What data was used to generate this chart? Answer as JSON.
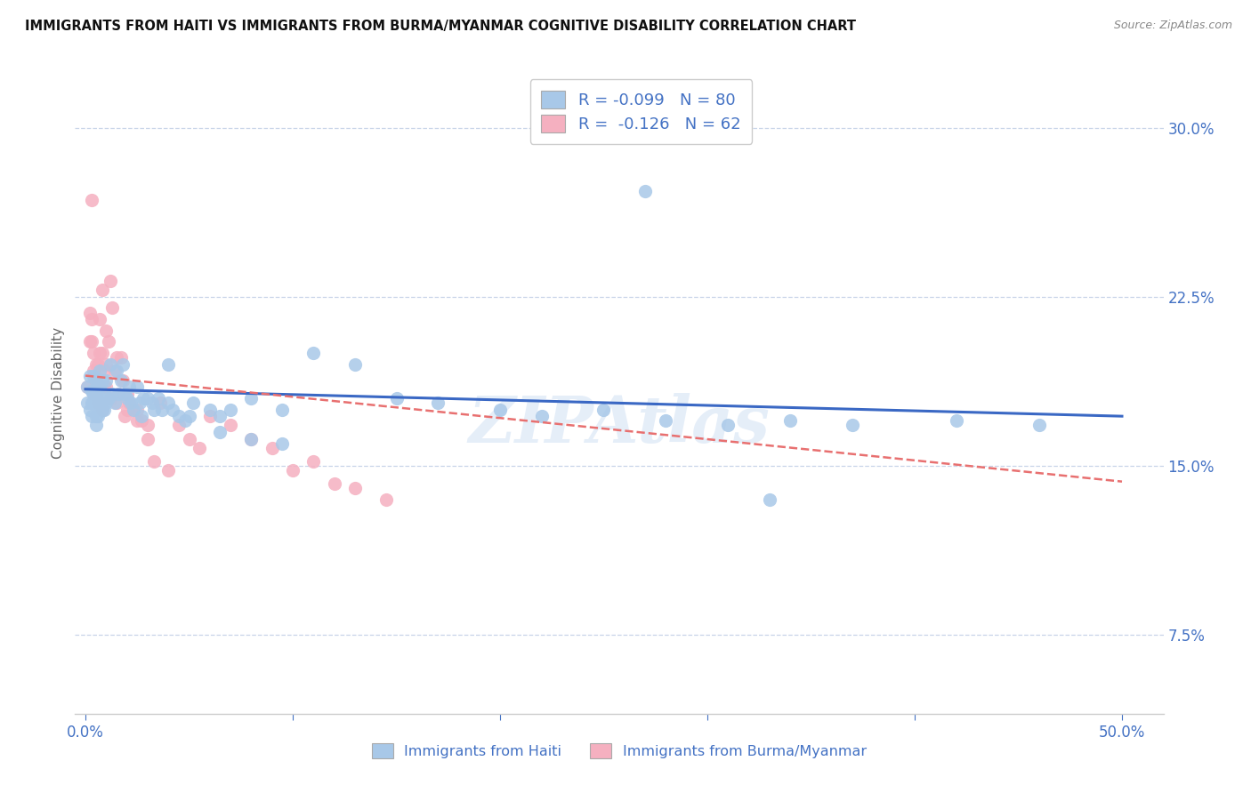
{
  "title": "IMMIGRANTS FROM HAITI VS IMMIGRANTS FROM BURMA/MYANMAR COGNITIVE DISABILITY CORRELATION CHART",
  "source": "Source: ZipAtlas.com",
  "ylabel": "Cognitive Disability",
  "y_ticks_right": [
    0.075,
    0.15,
    0.225,
    0.3
  ],
  "y_tick_labels_right": [
    "7.5%",
    "15.0%",
    "22.5%",
    "30.0%"
  ],
  "xlim": [
    -0.005,
    0.52
  ],
  "ylim": [
    0.04,
    0.325
  ],
  "legend_haiti_label": "R = -0.099   N = 80",
  "legend_burma_label": "R =  -0.126   N = 62",
  "haiti_color": "#a8c8e8",
  "burma_color": "#f5b0c0",
  "haiti_line_color": "#3a68c4",
  "burma_line_color": "#e87070",
  "axis_color": "#4472c4",
  "legend_label_haiti": "Immigrants from Haiti",
  "legend_label_burma": "Immigrants from Burma/Myanmar",
  "haiti_scatter_x": [
    0.001,
    0.001,
    0.002,
    0.002,
    0.003,
    0.003,
    0.003,
    0.004,
    0.004,
    0.004,
    0.005,
    0.005,
    0.005,
    0.005,
    0.005,
    0.006,
    0.006,
    0.006,
    0.007,
    0.007,
    0.007,
    0.008,
    0.008,
    0.008,
    0.009,
    0.009,
    0.01,
    0.01,
    0.011,
    0.012,
    0.013,
    0.014,
    0.015,
    0.016,
    0.017,
    0.018,
    0.019,
    0.02,
    0.021,
    0.022,
    0.023,
    0.025,
    0.026,
    0.027,
    0.028,
    0.03,
    0.032,
    0.033,
    0.035,
    0.037,
    0.04,
    0.042,
    0.045,
    0.048,
    0.052,
    0.06,
    0.065,
    0.07,
    0.08,
    0.095,
    0.11,
    0.13,
    0.15,
    0.17,
    0.2,
    0.22,
    0.25,
    0.28,
    0.31,
    0.34,
    0.37,
    0.04,
    0.05,
    0.065,
    0.08,
    0.095,
    0.42,
    0.46,
    0.27,
    0.33
  ],
  "haiti_scatter_y": [
    0.185,
    0.178,
    0.19,
    0.175,
    0.183,
    0.178,
    0.172,
    0.19,
    0.182,
    0.178,
    0.188,
    0.182,
    0.178,
    0.172,
    0.168,
    0.185,
    0.178,
    0.172,
    0.192,
    0.185,
    0.178,
    0.188,
    0.18,
    0.175,
    0.182,
    0.175,
    0.188,
    0.178,
    0.18,
    0.195,
    0.182,
    0.178,
    0.192,
    0.182,
    0.188,
    0.195,
    0.182,
    0.18,
    0.185,
    0.178,
    0.175,
    0.185,
    0.178,
    0.172,
    0.18,
    0.18,
    0.178,
    0.175,
    0.18,
    0.175,
    0.178,
    0.175,
    0.172,
    0.17,
    0.178,
    0.175,
    0.172,
    0.175,
    0.18,
    0.175,
    0.2,
    0.195,
    0.18,
    0.178,
    0.175,
    0.172,
    0.175,
    0.17,
    0.168,
    0.17,
    0.168,
    0.195,
    0.172,
    0.165,
    0.162,
    0.16,
    0.17,
    0.168,
    0.272,
    0.135
  ],
  "burma_scatter_x": [
    0.001,
    0.002,
    0.002,
    0.003,
    0.003,
    0.004,
    0.004,
    0.005,
    0.005,
    0.005,
    0.006,
    0.006,
    0.007,
    0.007,
    0.008,
    0.008,
    0.009,
    0.009,
    0.01,
    0.01,
    0.011,
    0.012,
    0.013,
    0.014,
    0.015,
    0.016,
    0.017,
    0.018,
    0.019,
    0.02,
    0.021,
    0.023,
    0.025,
    0.027,
    0.03,
    0.033,
    0.036,
    0.04,
    0.045,
    0.05,
    0.055,
    0.06,
    0.07,
    0.08,
    0.09,
    0.1,
    0.11,
    0.12,
    0.13,
    0.145,
    0.003,
    0.004,
    0.005,
    0.006,
    0.007,
    0.008,
    0.01,
    0.012,
    0.015,
    0.02,
    0.025,
    0.03
  ],
  "burma_scatter_y": [
    0.185,
    0.218,
    0.205,
    0.215,
    0.205,
    0.2,
    0.192,
    0.195,
    0.188,
    0.182,
    0.195,
    0.185,
    0.215,
    0.2,
    0.228,
    0.2,
    0.192,
    0.185,
    0.21,
    0.195,
    0.205,
    0.232,
    0.22,
    0.192,
    0.198,
    0.182,
    0.198,
    0.188,
    0.172,
    0.182,
    0.178,
    0.175,
    0.175,
    0.17,
    0.168,
    0.152,
    0.178,
    0.148,
    0.168,
    0.162,
    0.158,
    0.172,
    0.168,
    0.162,
    0.158,
    0.148,
    0.152,
    0.142,
    0.14,
    0.135,
    0.268,
    0.182,
    0.182,
    0.178,
    0.178,
    0.175,
    0.185,
    0.18,
    0.178,
    0.175,
    0.17,
    0.162
  ],
  "haiti_line_x": [
    0.0,
    0.5
  ],
  "haiti_line_y": [
    0.184,
    0.172
  ],
  "burma_line_x": [
    0.0,
    0.5
  ],
  "burma_line_y": [
    0.19,
    0.143
  ],
  "watermark": "ZIPAtlas",
  "background_color": "#ffffff",
  "grid_color": "#c8d4e8",
  "figsize": [
    14.06,
    8.92
  ]
}
